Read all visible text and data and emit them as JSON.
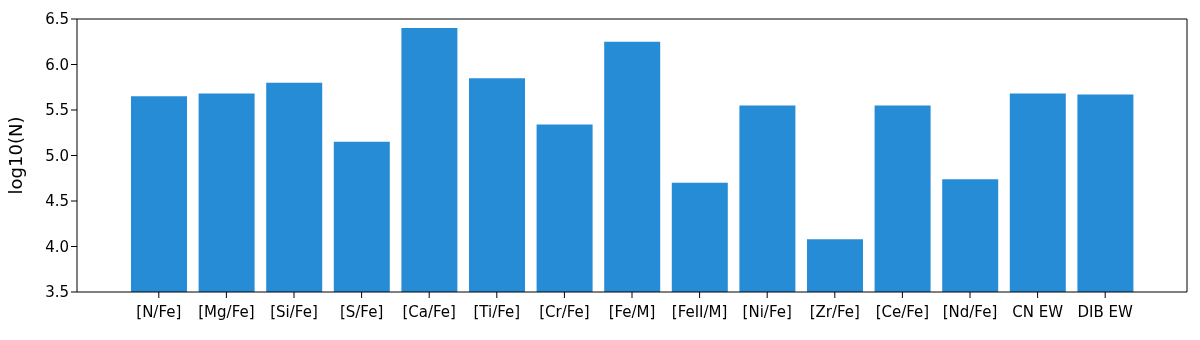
{
  "chart_data": {
    "type": "bar",
    "ylabel": "log10(N)",
    "categories": [
      "[N/Fe]",
      "[Mg/Fe]",
      "[Si/Fe]",
      "[S/Fe]",
      "[Ca/Fe]",
      "[Ti/Fe]",
      "[Cr/Fe]",
      "[Fe/M]",
      "[FeII/M]",
      "[Ni/Fe]",
      "[Zr/Fe]",
      "[Ce/Fe]",
      "[Nd/Fe]",
      "CN EW",
      "DIB EW"
    ],
    "values": [
      5.65,
      5.68,
      5.8,
      5.15,
      6.4,
      5.85,
      5.34,
      6.25,
      4.7,
      5.55,
      4.08,
      5.55,
      4.74,
      5.68,
      5.67
    ],
    "color": "#278cd6",
    "ylim": [
      3.5,
      6.5
    ],
    "yticks": [
      {
        "value": 3.5,
        "label": "3.5"
      },
      {
        "value": 4,
        "label": "4.0"
      },
      {
        "value": 4.5,
        "label": "4.5"
      },
      {
        "value": 5,
        "label": "5.0"
      },
      {
        "value": 5.5,
        "label": "5.5"
      },
      {
        "value": 6,
        "label": "6.0"
      },
      {
        "value": 6.5,
        "label": "6.5"
      }
    ],
    "grid": false
  }
}
